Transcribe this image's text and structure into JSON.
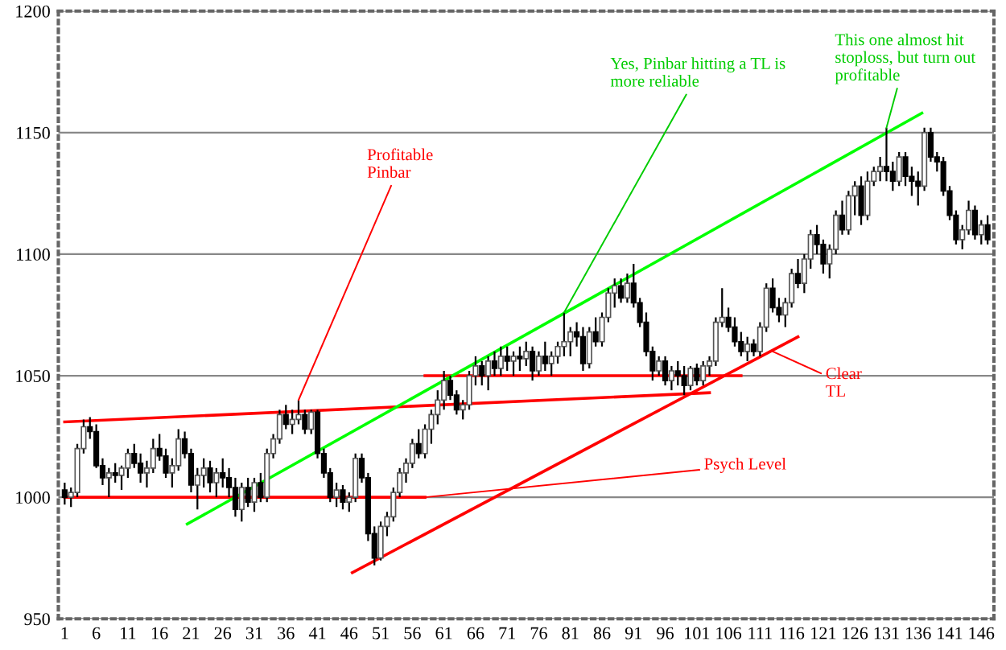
{
  "chart_data": {
    "type": "candlestick",
    "x": [
      1,
      2,
      3,
      4,
      5,
      6,
      7,
      8,
      9,
      10,
      11,
      12,
      13,
      14,
      15,
      16,
      17,
      18,
      19,
      20,
      21,
      22,
      23,
      24,
      25,
      26,
      27,
      28,
      29,
      30,
      31,
      32,
      33,
      34,
      35,
      36,
      37,
      38,
      39,
      40,
      41,
      42,
      43,
      44,
      45,
      46,
      47,
      48,
      49,
      50,
      51,
      52,
      53,
      54,
      55,
      56,
      57,
      58,
      59,
      60,
      61,
      62,
      63,
      64,
      65,
      66,
      67,
      68,
      69,
      70,
      71,
      72,
      73,
      74,
      75,
      76,
      77,
      78,
      79,
      80,
      81,
      82,
      83,
      84,
      85,
      86,
      87,
      88,
      89,
      90,
      91,
      92,
      93,
      94,
      95,
      96,
      97,
      98,
      99,
      100,
      101,
      102,
      103,
      104,
      105,
      106,
      107,
      108,
      109,
      110,
      111,
      112,
      113,
      114,
      115,
      116,
      117,
      118,
      119,
      120,
      121,
      122,
      123,
      124,
      125,
      126,
      127,
      128,
      129,
      130,
      131,
      132,
      133,
      134,
      135,
      136,
      137,
      138,
      139,
      140,
      141,
      142,
      143,
      144,
      145,
      146,
      147
    ],
    "ohlc": [
      [
        1003,
        1006,
        997,
        1000
      ],
      [
        1000,
        1004,
        996,
        1002
      ],
      [
        1002,
        1022,
        1000,
        1020
      ],
      [
        1020,
        1032,
        1018,
        1029
      ],
      [
        1029,
        1033,
        1024,
        1027
      ],
      [
        1027,
        1030,
        1012,
        1013
      ],
      [
        1013,
        1016,
        1005,
        1008
      ],
      [
        1008,
        1012,
        1000,
        1010
      ],
      [
        1010,
        1014,
        1006,
        1009
      ],
      [
        1009,
        1013,
        1003,
        1012
      ],
      [
        1012,
        1020,
        1008,
        1018
      ],
      [
        1018,
        1022,
        1012,
        1014
      ],
      [
        1014,
        1018,
        1006,
        1010
      ],
      [
        1010,
        1015,
        1004,
        1012
      ],
      [
        1012,
        1024,
        1010,
        1020
      ],
      [
        1020,
        1026,
        1015,
        1017
      ],
      [
        1017,
        1020,
        1008,
        1010
      ],
      [
        1010,
        1016,
        1004,
        1013
      ],
      [
        1013,
        1028,
        1011,
        1024
      ],
      [
        1024,
        1027,
        1016,
        1018
      ],
      [
        1018,
        1020,
        1002,
        1005
      ],
      [
        1005,
        1012,
        995,
        1009
      ],
      [
        1009,
        1016,
        1004,
        1012
      ],
      [
        1012,
        1015,
        1002,
        1006
      ],
      [
        1006,
        1012,
        1000,
        1010
      ],
      [
        1010,
        1016,
        1004,
        1008
      ],
      [
        1008,
        1012,
        1000,
        1004
      ],
      [
        1004,
        1008,
        992,
        995
      ],
      [
        995,
        1006,
        990,
        1004
      ],
      [
        1004,
        1008,
        996,
        998
      ],
      [
        998,
        1008,
        994,
        1006
      ],
      [
        1006,
        1010,
        998,
        1000
      ],
      [
        1000,
        1020,
        998,
        1018
      ],
      [
        1018,
        1026,
        1016,
        1024
      ],
      [
        1024,
        1036,
        1022,
        1034
      ],
      [
        1034,
        1038,
        1028,
        1030
      ],
      [
        1030,
        1036,
        1026,
        1032
      ],
      [
        1032,
        1040,
        1030,
        1034
      ],
      [
        1034,
        1036,
        1026,
        1028
      ],
      [
        1028,
        1036,
        1026,
        1035
      ],
      [
        1035,
        1036,
        1016,
        1018
      ],
      [
        1018,
        1020,
        1008,
        1010
      ],
      [
        1010,
        1012,
        998,
        1000
      ],
      [
        1000,
        1006,
        996,
        1003
      ],
      [
        1003,
        1005,
        995,
        998
      ],
      [
        998,
        1002,
        994,
        1000
      ],
      [
        1000,
        1018,
        998,
        1016
      ],
      [
        1016,
        1018,
        1006,
        1008
      ],
      [
        1008,
        1010,
        982,
        985
      ],
      [
        985,
        988,
        972,
        975
      ],
      [
        975,
        990,
        974,
        988
      ],
      [
        988,
        994,
        984,
        992
      ],
      [
        992,
        1004,
        990,
        1002
      ],
      [
        1002,
        1012,
        1000,
        1010
      ],
      [
        1010,
        1016,
        1006,
        1014
      ],
      [
        1014,
        1024,
        1012,
        1022
      ],
      [
        1022,
        1028,
        1016,
        1018
      ],
      [
        1018,
        1030,
        1016,
        1028
      ],
      [
        1028,
        1036,
        1022,
        1034
      ],
      [
        1034,
        1044,
        1030,
        1040
      ],
      [
        1040,
        1052,
        1036,
        1048
      ],
      [
        1048,
        1050,
        1040,
        1042
      ],
      [
        1042,
        1044,
        1034,
        1036
      ],
      [
        1036,
        1040,
        1032,
        1038
      ],
      [
        1038,
        1052,
        1036,
        1050
      ],
      [
        1050,
        1058,
        1046,
        1054
      ],
      [
        1054,
        1056,
        1046,
        1050
      ],
      [
        1050,
        1058,
        1044,
        1056
      ],
      [
        1056,
        1060,
        1050,
        1053
      ],
      [
        1053,
        1062,
        1050,
        1058
      ],
      [
        1058,
        1062,
        1052,
        1056
      ],
      [
        1056,
        1060,
        1050,
        1058
      ],
      [
        1058,
        1062,
        1052,
        1057
      ],
      [
        1057,
        1064,
        1054,
        1060
      ],
      [
        1060,
        1062,
        1048,
        1052
      ],
      [
        1052,
        1060,
        1050,
        1058
      ],
      [
        1058,
        1064,
        1052,
        1055
      ],
      [
        1055,
        1060,
        1050,
        1058
      ],
      [
        1058,
        1064,
        1055,
        1062
      ],
      [
        1062,
        1076,
        1058,
        1064
      ],
      [
        1064,
        1070,
        1058,
        1068
      ],
      [
        1068,
        1072,
        1062,
        1066
      ],
      [
        1066,
        1070,
        1052,
        1055
      ],
      [
        1055,
        1070,
        1053,
        1068
      ],
      [
        1068,
        1074,
        1062,
        1064
      ],
      [
        1064,
        1076,
        1062,
        1074
      ],
      [
        1074,
        1086,
        1072,
        1084
      ],
      [
        1084,
        1090,
        1078,
        1087
      ],
      [
        1087,
        1090,
        1080,
        1082
      ],
      [
        1082,
        1092,
        1080,
        1088
      ],
      [
        1088,
        1096,
        1078,
        1080
      ],
      [
        1080,
        1082,
        1070,
        1072
      ],
      [
        1072,
        1076,
        1058,
        1060
      ],
      [
        1060,
        1062,
        1048,
        1052
      ],
      [
        1052,
        1058,
        1050,
        1056
      ],
      [
        1056,
        1058,
        1046,
        1048
      ],
      [
        1048,
        1054,
        1044,
        1052
      ],
      [
        1052,
        1056,
        1046,
        1050
      ],
      [
        1050,
        1054,
        1042,
        1046
      ],
      [
        1046,
        1054,
        1044,
        1053
      ],
      [
        1053,
        1055,
        1046,
        1048
      ],
      [
        1048,
        1056,
        1046,
        1054
      ],
      [
        1054,
        1058,
        1050,
        1056
      ],
      [
        1056,
        1074,
        1054,
        1072
      ],
      [
        1072,
        1086,
        1070,
        1074
      ],
      [
        1074,
        1078,
        1068,
        1070
      ],
      [
        1070,
        1074,
        1062,
        1064
      ],
      [
        1064,
        1068,
        1058,
        1060
      ],
      [
        1060,
        1066,
        1056,
        1063
      ],
      [
        1063,
        1065,
        1058,
        1060
      ],
      [
        1060,
        1072,
        1058,
        1070
      ],
      [
        1070,
        1088,
        1068,
        1086
      ],
      [
        1086,
        1090,
        1076,
        1078
      ],
      [
        1078,
        1082,
        1072,
        1075
      ],
      [
        1075,
        1082,
        1070,
        1080
      ],
      [
        1080,
        1094,
        1078,
        1092
      ],
      [
        1092,
        1098,
        1086,
        1088
      ],
      [
        1088,
        1100,
        1084,
        1098
      ],
      [
        1098,
        1110,
        1094,
        1108
      ],
      [
        1108,
        1112,
        1100,
        1104
      ],
      [
        1104,
        1106,
        1092,
        1096
      ],
      [
        1096,
        1104,
        1090,
        1102
      ],
      [
        1102,
        1118,
        1100,
        1116
      ],
      [
        1116,
        1122,
        1108,
        1110
      ],
      [
        1110,
        1126,
        1108,
        1124
      ],
      [
        1124,
        1130,
        1116,
        1128
      ],
      [
        1128,
        1132,
        1112,
        1116
      ],
      [
        1116,
        1134,
        1114,
        1130
      ],
      [
        1130,
        1136,
        1128,
        1134
      ],
      [
        1134,
        1140,
        1130,
        1136
      ],
      [
        1136,
        1152,
        1130,
        1134
      ],
      [
        1134,
        1138,
        1126,
        1130
      ],
      [
        1130,
        1142,
        1128,
        1140
      ],
      [
        1140,
        1142,
        1128,
        1132
      ],
      [
        1132,
        1136,
        1124,
        1130
      ],
      [
        1130,
        1134,
        1120,
        1128
      ],
      [
        1128,
        1152,
        1126,
        1150
      ],
      [
        1150,
        1152,
        1138,
        1140
      ],
      [
        1140,
        1142,
        1134,
        1138
      ],
      [
        1138,
        1140,
        1124,
        1126
      ],
      [
        1126,
        1128,
        1114,
        1116
      ],
      [
        1116,
        1118,
        1104,
        1106
      ],
      [
        1106,
        1112,
        1102,
        1110
      ],
      [
        1110,
        1122,
        1108,
        1118
      ],
      [
        1118,
        1120,
        1106,
        1108
      ],
      [
        1108,
        1114,
        1104,
        1112
      ],
      [
        1112,
        1116,
        1104,
        1106
      ]
    ],
    "series": [
      {
        "type": "line",
        "color": "#ff0000",
        "x": [
          1,
          103
        ],
        "values": [
          1031,
          1043
        ]
      },
      {
        "type": "line",
        "color": "#ff0000",
        "x": [
          1,
          58
        ],
        "values": [
          1000,
          1000
        ]
      },
      {
        "type": "line",
        "color": "#ff0000",
        "x": [
          58,
          108
        ],
        "values": [
          1050,
          1050
        ]
      },
      {
        "type": "line",
        "color": "#ff0000",
        "x": [
          46.5,
          117
        ],
        "values": [
          969,
          1066
        ]
      },
      {
        "type": "line",
        "color": "#00ff00",
        "x": [
          20.4,
          136.6
        ],
        "values": [
          989,
          1158
        ]
      }
    ],
    "annotations": [
      {
        "text": "Profitable\nPinbar",
        "x": 38,
        "y": 1040
      },
      {
        "text": "Yes, Pinbar hitting a TL is\nmore reliable",
        "x": 80,
        "y": 1076
      },
      {
        "text": "This one almost hit\nstoploss, but turn out\nprofitable",
        "x": 131,
        "y": 1152
      },
      {
        "text": "Clear\nTL",
        "x": 113,
        "y": 1060
      },
      {
        "text": "Psych Level",
        "x": 58,
        "y": 1000
      }
    ],
    "xlim": [
      0,
      148
    ],
    "ylim": [
      950,
      1200
    ],
    "xticks": [
      1,
      6,
      11,
      16,
      21,
      26,
      31,
      36,
      41,
      46,
      51,
      56,
      61,
      66,
      71,
      76,
      81,
      86,
      91,
      96,
      101,
      106,
      111,
      116,
      121,
      126,
      131,
      136,
      141,
      146
    ],
    "yticks": [
      950,
      1000,
      1050,
      1100,
      1150,
      1200
    ],
    "grid": "y"
  }
}
